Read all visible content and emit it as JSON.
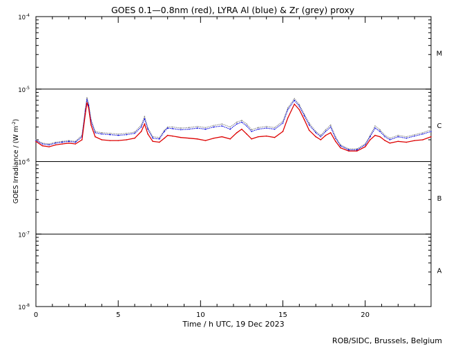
{
  "footer": "ROB/SIDC, Brussels, Belgium",
  "colors": {
    "goes": "#dd0000",
    "lyra_al": "#0000dd",
    "lyra_zr": "#888888",
    "axes": "#000000"
  },
  "chart_data": {
    "type": "line",
    "title": "GOES 0.1—0.8nm (red), LYRA Al (blue) & Zr (grey) proxy",
    "xlabel": "Time / h UTC, 19 Dec 2023",
    "ylabel": "GOES Irradiance / (W m",
    "ylabel_sup": "-2",
    "ylabel_end": ")",
    "xlim": [
      0,
      24
    ],
    "ylim_exp": [
      -8,
      -4
    ],
    "yscale": "log",
    "x_ticks": [
      0,
      5,
      10,
      15,
      20
    ],
    "y_ticks": [
      {
        "exp": -8,
        "base": "10",
        "sup": "-8"
      },
      {
        "exp": -7,
        "base": "10",
        "sup": "-7"
      },
      {
        "exp": -6,
        "base": "10",
        "sup": "-6"
      },
      {
        "exp": -5,
        "base": "10",
        "sup": "-5"
      },
      {
        "exp": -4,
        "base": "10",
        "sup": "-4"
      }
    ],
    "flare_classes": [
      {
        "label": "A",
        "center_exp": -7.5
      },
      {
        "label": "B",
        "center_exp": -6.5
      },
      {
        "label": "C",
        "center_exp": -5.5
      },
      {
        "label": "M",
        "center_exp": -4.5
      }
    ],
    "class_boundaries_exp": [
      -7,
      -6,
      -5
    ],
    "series": [
      {
        "name": "GOES 0.1—0.8nm",
        "color": "#dd0000",
        "x": [
          0,
          0.4,
          0.8,
          1.2,
          1.6,
          2.0,
          2.4,
          2.8,
          3.0,
          3.1,
          3.2,
          3.35,
          3.6,
          4.0,
          4.5,
          5.0,
          5.5,
          6.0,
          6.4,
          6.6,
          6.8,
          7.1,
          7.5,
          7.8,
          8.0,
          8.3,
          8.8,
          9.3,
          9.8,
          10.3,
          10.8,
          11.3,
          11.8,
          12.2,
          12.5,
          12.8,
          13.1,
          13.5,
          14.0,
          14.5,
          15.0,
          15.3,
          15.7,
          16.0,
          16.3,
          16.6,
          17.0,
          17.3,
          17.6,
          17.9,
          18.2,
          18.5,
          19.0,
          19.5,
          20.0,
          20.3,
          20.6,
          20.9,
          21.2,
          21.5,
          22.0,
          22.5,
          23.0,
          23.5,
          24.0
        ],
        "values": [
          1.9e-06,
          1.65e-06,
          1.6e-06,
          1.7e-06,
          1.75e-06,
          1.8e-06,
          1.75e-06,
          2e-06,
          4.5e-06,
          6.5e-06,
          5.5e-06,
          3.2e-06,
          2.2e-06,
          2e-06,
          1.95e-06,
          1.95e-06,
          2e-06,
          2.1e-06,
          2.6e-06,
          3.3e-06,
          2.4e-06,
          1.9e-06,
          1.85e-06,
          2.1e-06,
          2.3e-06,
          2.25e-06,
          2.15e-06,
          2.1e-06,
          2.05e-06,
          1.95e-06,
          2.1e-06,
          2.2e-06,
          2.05e-06,
          2.5e-06,
          2.8e-06,
          2.4e-06,
          2.05e-06,
          2.2e-06,
          2.25e-06,
          2.15e-06,
          2.6e-06,
          4e-06,
          6.2e-06,
          5.2e-06,
          3.8e-06,
          2.7e-06,
          2.2e-06,
          2e-06,
          2.3e-06,
          2.5e-06,
          1.9e-06,
          1.55e-06,
          1.4e-06,
          1.4e-06,
          1.6e-06,
          2e-06,
          2.3e-06,
          2.2e-06,
          1.95e-06,
          1.8e-06,
          1.9e-06,
          1.85e-06,
          1.95e-06,
          2e-06,
          2.2e-06
        ]
      },
      {
        "name": "LYRA Al",
        "color": "#0000dd",
        "x": [
          0,
          0.4,
          0.8,
          1.2,
          1.6,
          2.0,
          2.4,
          2.8,
          3.0,
          3.1,
          3.2,
          3.35,
          3.6,
          4.0,
          4.5,
          5.0,
          5.5,
          6.0,
          6.4,
          6.6,
          6.8,
          7.1,
          7.5,
          7.8,
          8.0,
          8.3,
          8.8,
          9.3,
          9.8,
          10.3,
          10.8,
          11.3,
          11.8,
          12.2,
          12.5,
          12.8,
          13.1,
          13.5,
          14.0,
          14.5,
          15.0,
          15.3,
          15.7,
          16.0,
          16.3,
          16.6,
          17.0,
          17.3,
          17.6,
          17.9,
          18.2,
          18.5,
          19.0,
          19.5,
          20.0,
          20.3,
          20.6,
          20.9,
          21.2,
          21.5,
          22.0,
          22.5,
          23.0,
          23.5,
          24.0
        ],
        "values": [
          1.95e-06,
          1.75e-06,
          1.7e-06,
          1.8e-06,
          1.85e-06,
          1.9e-06,
          1.85e-06,
          2.2e-06,
          5e-06,
          7.2e-06,
          6e-06,
          3.6e-06,
          2.5e-06,
          2.4e-06,
          2.35e-06,
          2.3e-06,
          2.35e-06,
          2.45e-06,
          3e-06,
          3.9e-06,
          2.8e-06,
          2.1e-06,
          2.05e-06,
          2.6e-06,
          2.9e-06,
          2.85e-06,
          2.75e-06,
          2.8e-06,
          2.9e-06,
          2.8e-06,
          3e-06,
          3.1e-06,
          2.8e-06,
          3.3e-06,
          3.5e-06,
          3.1e-06,
          2.6e-06,
          2.8e-06,
          2.9e-06,
          2.8e-06,
          3.4e-06,
          5.2e-06,
          7e-06,
          5.8e-06,
          4.3e-06,
          3.2e-06,
          2.5e-06,
          2.2e-06,
          2.6e-06,
          3e-06,
          2.1e-06,
          1.65e-06,
          1.45e-06,
          1.45e-06,
          1.7e-06,
          2.2e-06,
          2.9e-06,
          2.6e-06,
          2.2e-06,
          2e-06,
          2.2e-06,
          2.1e-06,
          2.25e-06,
          2.4e-06,
          2.6e-06
        ]
      },
      {
        "name": "LYRA Zr",
        "color": "#888888",
        "x": [
          0,
          0.4,
          0.8,
          1.2,
          1.6,
          2.0,
          2.4,
          2.8,
          3.0,
          3.1,
          3.2,
          3.35,
          3.6,
          4.0,
          4.5,
          5.0,
          5.5,
          6.0,
          6.4,
          6.6,
          6.8,
          7.1,
          7.5,
          7.8,
          8.0,
          8.3,
          8.8,
          9.3,
          9.8,
          10.3,
          10.8,
          11.3,
          11.8,
          12.2,
          12.5,
          12.8,
          13.1,
          13.5,
          14.0,
          14.5,
          15.0,
          15.3,
          15.7,
          16.0,
          16.3,
          16.6,
          17.0,
          17.3,
          17.6,
          17.9,
          18.2,
          18.5,
          19.0,
          19.5,
          20.0,
          20.3,
          20.6,
          20.9,
          21.2,
          21.5,
          22.0,
          22.5,
          23.0,
          23.5,
          24.0
        ],
        "values": [
          2e-06,
          1.8e-06,
          1.75e-06,
          1.85e-06,
          1.9e-06,
          1.95e-06,
          1.9e-06,
          2.3e-06,
          5.3e-06,
          7.6e-06,
          6.3e-06,
          3.8e-06,
          2.6e-06,
          2.5e-06,
          2.45e-06,
          2.4e-06,
          2.45e-06,
          2.55e-06,
          3.2e-06,
          4.2e-06,
          2.9e-06,
          2.2e-06,
          2.15e-06,
          2.7e-06,
          3e-06,
          3e-06,
          2.9e-06,
          2.95e-06,
          3.05e-06,
          2.95e-06,
          3.15e-06,
          3.3e-06,
          3e-06,
          3.5e-06,
          3.7e-06,
          3.3e-06,
          2.75e-06,
          2.95e-06,
          3.05e-06,
          2.95e-06,
          3.6e-06,
          5.5e-06,
          7.4e-06,
          6.1e-06,
          4.5e-06,
          3.4e-06,
          2.6e-06,
          2.3e-06,
          2.75e-06,
          3.2e-06,
          2.2e-06,
          1.7e-06,
          1.5e-06,
          1.5e-06,
          1.75e-06,
          2.3e-06,
          3.1e-06,
          2.75e-06,
          2.3e-06,
          2.1e-06,
          2.3e-06,
          2.2e-06,
          2.35e-06,
          2.5e-06,
          2.75e-06
        ]
      }
    ]
  }
}
